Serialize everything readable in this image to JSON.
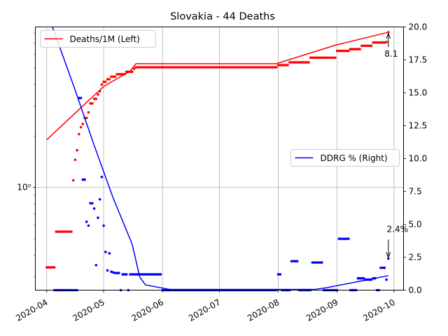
{
  "chart_data": {
    "type": "line",
    "title": "Slovakia - 44 Deaths",
    "x_axis": {
      "type": "date",
      "range": [
        "2020-03-26",
        "2020-10-06"
      ],
      "ticks": [
        "2020-04",
        "2020-05",
        "2020-06",
        "2020-07",
        "2020-08",
        "2020-09",
        "2020-10"
      ]
    },
    "y_left": {
      "scale": "log",
      "range": [
        0.25,
        8.7
      ],
      "ticks": [
        {
          "value": 1,
          "label": "10⁰"
        }
      ]
    },
    "y_right": {
      "scale": "linear",
      "range": [
        0,
        20
      ],
      "ticks": [
        "0.0",
        "2.5",
        "5.0",
        "7.5",
        "10.0",
        "12.5",
        "15.0",
        "17.5",
        "20.0"
      ]
    },
    "grid": true,
    "colors": {
      "deaths": "#ff0000",
      "ddrg": "#0000ff"
    },
    "legends": [
      {
        "label": "Deaths/1M (Left)",
        "placement": "upper-left"
      },
      {
        "label": "DDRG % (Right)",
        "placement": "center-right"
      }
    ],
    "annotations": [
      {
        "text": "8.1",
        "series": "deaths",
        "x": "2020-09-28",
        "y": 8.1
      },
      {
        "text": "2.4%",
        "series": "ddrg",
        "x": "2020-09-28",
        "y": 2.4
      }
    ],
    "series": [
      {
        "name": "Deaths/1M (Left)",
        "axis": "left",
        "style": "line",
        "color": "#ff0000",
        "points": [
          [
            "2020-04-01",
            1.9
          ],
          [
            "2020-05-01",
            3.9
          ],
          [
            "2020-05-15",
            4.8
          ],
          [
            "2020-05-18",
            5.3
          ],
          [
            "2020-07-31",
            5.3
          ],
          [
            "2020-08-31",
            6.8
          ],
          [
            "2020-09-28",
            8.1
          ]
        ]
      },
      {
        "name": "Deaths/1M daily",
        "axis": "left",
        "style": "markers",
        "color": "#ff0000",
        "points": [
          [
            "2020-04-01",
            0.34
          ],
          [
            "2020-04-02",
            0.34
          ],
          [
            "2020-04-03",
            0.34
          ],
          [
            "2020-04-04",
            0.34
          ],
          [
            "2020-04-05",
            0.34
          ],
          [
            "2020-04-06",
            0.55
          ],
          [
            "2020-04-07",
            0.55
          ],
          [
            "2020-04-08",
            0.55
          ],
          [
            "2020-04-09",
            0.55
          ],
          [
            "2020-04-10",
            0.55
          ],
          [
            "2020-04-11",
            0.55
          ],
          [
            "2020-04-12",
            0.55
          ],
          [
            "2020-04-13",
            0.55
          ],
          [
            "2020-04-14",
            0.55
          ],
          [
            "2020-04-15",
            1.1
          ],
          [
            "2020-04-16",
            1.45
          ],
          [
            "2020-04-17",
            1.65
          ],
          [
            "2020-04-18",
            2.05
          ],
          [
            "2020-04-19",
            2.25
          ],
          [
            "2020-04-20",
            2.35
          ],
          [
            "2020-04-21",
            2.55
          ],
          [
            "2020-04-22",
            2.55
          ],
          [
            "2020-04-23",
            2.75
          ],
          [
            "2020-04-24",
            3.1
          ],
          [
            "2020-04-25",
            3.1
          ],
          [
            "2020-04-26",
            3.3
          ],
          [
            "2020-04-27",
            3.3
          ],
          [
            "2020-04-28",
            3.5
          ],
          [
            "2020-04-29",
            3.65
          ],
          [
            "2020-04-30",
            4.0
          ],
          [
            "2020-05-01",
            4.15
          ],
          [
            "2020-05-02",
            4.15
          ],
          [
            "2020-05-03",
            4.3
          ],
          [
            "2020-05-04",
            4.3
          ],
          [
            "2020-05-05",
            4.45
          ],
          [
            "2020-05-06",
            4.45
          ],
          [
            "2020-05-07",
            4.45
          ],
          [
            "2020-05-08",
            4.6
          ],
          [
            "2020-05-09",
            4.6
          ],
          [
            "2020-05-10",
            4.6
          ],
          [
            "2020-05-11",
            4.6
          ],
          [
            "2020-05-12",
            4.6
          ],
          [
            "2020-05-13",
            4.75
          ],
          [
            "2020-05-14",
            4.75
          ],
          [
            "2020-05-15",
            4.75
          ],
          [
            "2020-05-16",
            4.75
          ],
          [
            "2020-05-17",
            4.95
          ],
          [
            "2020-05-18",
            5.05
          ],
          [
            "2020-06-01",
            5.05
          ],
          [
            "2020-07-01",
            5.05
          ],
          [
            "2020-07-31",
            5.05
          ],
          [
            "2020-08-01",
            5.2
          ],
          [
            "2020-08-06",
            5.2
          ],
          [
            "2020-08-07",
            5.4
          ],
          [
            "2020-08-17",
            5.4
          ],
          [
            "2020-08-18",
            5.75
          ],
          [
            "2020-08-31",
            5.75
          ],
          [
            "2020-09-01",
            6.3
          ],
          [
            "2020-09-07",
            6.3
          ],
          [
            "2020-09-08",
            6.45
          ],
          [
            "2020-09-13",
            6.45
          ],
          [
            "2020-09-14",
            6.75
          ],
          [
            "2020-09-19",
            6.75
          ],
          [
            "2020-09-20",
            7.05
          ],
          [
            "2020-09-27",
            7.1
          ],
          [
            "2020-09-28",
            8.1
          ]
        ]
      },
      {
        "name": "DDRG % (Right)",
        "axis": "right",
        "style": "line",
        "color": "#0000ff",
        "points": [
          [
            "2020-04-04",
            20.0
          ],
          [
            "2020-04-15",
            15.6
          ],
          [
            "2020-04-26",
            11.0
          ],
          [
            "2020-05-06",
            7.0
          ],
          [
            "2020-05-16",
            3.5
          ],
          [
            "2020-05-20",
            1.0
          ],
          [
            "2020-05-23",
            0.4
          ],
          [
            "2020-06-05",
            0.05
          ],
          [
            "2020-08-20",
            0.05
          ],
          [
            "2020-08-27",
            0.2
          ],
          [
            "2020-09-28",
            1.1
          ]
        ]
      },
      {
        "name": "DDRG daily",
        "axis": "right",
        "style": "markers",
        "color": "#0000ff",
        "points": [
          [
            "2020-04-05",
            0.0
          ],
          [
            "2020-04-08",
            0.0
          ],
          [
            "2020-04-11",
            0.0
          ],
          [
            "2020-04-14",
            0.0
          ],
          [
            "2020-04-18",
            14.6
          ],
          [
            "2020-04-20",
            8.4
          ],
          [
            "2020-04-22",
            5.2
          ],
          [
            "2020-04-23",
            4.9
          ],
          [
            "2020-04-24",
            6.6
          ],
          [
            "2020-04-25",
            6.6
          ],
          [
            "2020-04-26",
            6.2
          ],
          [
            "2020-04-27",
            1.9
          ],
          [
            "2020-04-28",
            5.5
          ],
          [
            "2020-04-29",
            6.9
          ],
          [
            "2020-04-30",
            8.6
          ],
          [
            "2020-05-01",
            4.9
          ],
          [
            "2020-05-02",
            2.9
          ],
          [
            "2020-05-03",
            1.5
          ],
          [
            "2020-05-04",
            2.8
          ],
          [
            "2020-05-05",
            1.4
          ],
          [
            "2020-05-06",
            1.35
          ],
          [
            "2020-05-07",
            1.3
          ],
          [
            "2020-05-08",
            1.3
          ],
          [
            "2020-05-09",
            1.3
          ],
          [
            "2020-05-10",
            0.0
          ],
          [
            "2020-05-11",
            1.2
          ],
          [
            "2020-05-12",
            1.2
          ],
          [
            "2020-05-13",
            1.2
          ],
          [
            "2020-05-14",
            0.0
          ],
          [
            "2020-05-15",
            1.2
          ],
          [
            "2020-05-16",
            1.2
          ],
          [
            "2020-05-17",
            1.2
          ],
          [
            "2020-06-01",
            0.0
          ],
          [
            "2020-07-01",
            0.0
          ],
          [
            "2020-07-31",
            0.0
          ],
          [
            "2020-08-01",
            1.2
          ],
          [
            "2020-08-02",
            1.2
          ],
          [
            "2020-08-03",
            0.0
          ],
          [
            "2020-08-08",
            2.2
          ],
          [
            "2020-08-09",
            2.2
          ],
          [
            "2020-08-10",
            2.2
          ],
          [
            "2020-08-12",
            0.0
          ],
          [
            "2020-08-19",
            2.1
          ],
          [
            "2020-08-20",
            2.1
          ],
          [
            "2020-08-21",
            2.1
          ],
          [
            "2020-08-25",
            0.0
          ],
          [
            "2020-09-02",
            3.9
          ],
          [
            "2020-09-03",
            3.9
          ],
          [
            "2020-09-04",
            3.9
          ],
          [
            "2020-09-08",
            0.0
          ],
          [
            "2020-09-12",
            0.9
          ],
          [
            "2020-09-13",
            0.9
          ],
          [
            "2020-09-14",
            0.9
          ],
          [
            "2020-09-16",
            0.8
          ],
          [
            "2020-09-17",
            0.8
          ],
          [
            "2020-09-18",
            0.8
          ],
          [
            "2020-09-20",
            0.9
          ],
          [
            "2020-09-22",
            0.0
          ],
          [
            "2020-09-24",
            1.7
          ],
          [
            "2020-09-25",
            1.7
          ],
          [
            "2020-09-27",
            0.8
          ],
          [
            "2020-09-28",
            2.4
          ]
        ]
      }
    ]
  }
}
